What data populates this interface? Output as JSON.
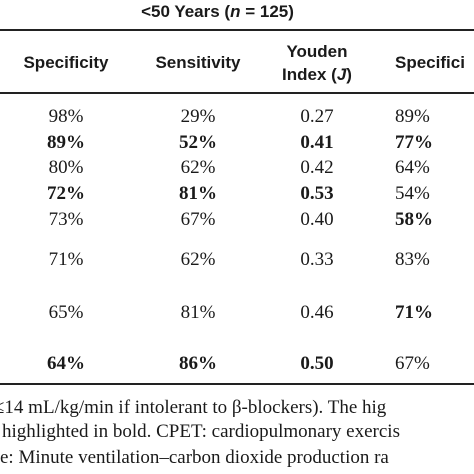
{
  "table": {
    "group_title_prefix": "<50 Years (",
    "group_title_n": "n",
    "group_title_suffix": " = 125)",
    "headers": {
      "specificity": "Specificity",
      "sensitivity": "Sensitivity",
      "youden_line1": "Youden",
      "youden_line2_prefix": "Index (",
      "youden_line2_j": "J",
      "youden_line2_suffix": ")",
      "specificity_2": "Specifici"
    },
    "rows": [
      {
        "spec": "98%",
        "sens": "29%",
        "youden": "0.27",
        "spec2": "89%",
        "bold": [
          false,
          false,
          false,
          false
        ]
      },
      {
        "spec": "89%",
        "sens": "52%",
        "youden": "0.41",
        "spec2": "77%",
        "bold": [
          true,
          true,
          true,
          true
        ]
      },
      {
        "spec": "80%",
        "sens": "62%",
        "youden": "0.42",
        "spec2": "64%",
        "bold": [
          false,
          false,
          false,
          false
        ]
      },
      {
        "spec": "72%",
        "sens": "81%",
        "youden": "0.53",
        "spec2": "54%",
        "bold": [
          true,
          true,
          true,
          false
        ]
      },
      {
        "spec": "73%",
        "sens": "67%",
        "youden": "0.40",
        "spec2": "58%",
        "bold": [
          false,
          false,
          false,
          true
        ]
      },
      {
        "spec": "71%",
        "sens": "62%",
        "youden": "0.33",
        "spec2": "83%",
        "bold": [
          false,
          false,
          false,
          false
        ]
      },
      {
        "spec": "65%",
        "sens": "81%",
        "youden": "0.46",
        "spec2": "71%",
        "bold": [
          false,
          false,
          false,
          true
        ]
      },
      {
        "spec": "64%",
        "sens": "86%",
        "youden": "0.50",
        "spec2": "67%",
        "bold": [
          true,
          true,
          true,
          false
        ]
      }
    ]
  },
  "footnotes": {
    "line1": "≤14 mL/kg/min if intolerant to β-blockers). The hig",
    "line2": "highlighted in bold. CPET: cardiopulmonary exercis",
    "line3": "e: Minute ventilation–carbon dioxide production ra"
  }
}
